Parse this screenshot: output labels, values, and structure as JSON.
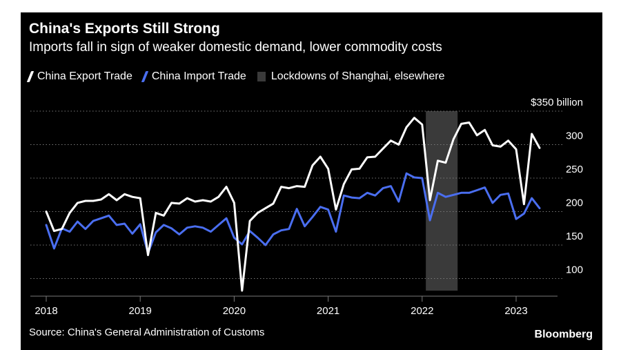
{
  "colors": {
    "background": "#000000",
    "export_line": "#ffffff",
    "import_line": "#4a6ef0",
    "lockdown_band": "#3a3a3a",
    "grid": "#7a7a7a",
    "text": "#ffffff"
  },
  "footer": {
    "source": "Source: China's General Administration of Customs",
    "brand": "Bloomberg"
  },
  "chart_data": {
    "type": "line",
    "title": "China's Exports Still Strong",
    "subtitle": "Imports fall in sign of weaker domestic demand, lower commodity costs",
    "ylabel": "",
    "xlabel": "",
    "y_unit_label": "$350 billion",
    "ylim": [
      80,
      350
    ],
    "y_ticks": [
      100,
      150,
      200,
      250,
      300,
      350
    ],
    "y_tick_labels": [
      "100",
      "150",
      "200",
      "250",
      "300",
      "$350 billion"
    ],
    "x_ticks": [
      "2018",
      "2019",
      "2020",
      "2021",
      "2022",
      "2023"
    ],
    "xlim": [
      "2017-12",
      "2023-05"
    ],
    "grid": true,
    "legend_position": "top-left",
    "lockdown_label": "Lockdowns of Shanghai, elsewhere",
    "shaded_periods": [
      {
        "label": "Lockdowns of Shanghai, elsewhere",
        "start": "2022-02",
        "end": "2022-05"
      }
    ],
    "dates": [
      "2018-01",
      "2018-02",
      "2018-03",
      "2018-04",
      "2018-05",
      "2018-06",
      "2018-07",
      "2018-08",
      "2018-09",
      "2018-10",
      "2018-11",
      "2018-12",
      "2019-01",
      "2019-02",
      "2019-03",
      "2019-04",
      "2019-05",
      "2019-06",
      "2019-07",
      "2019-08",
      "2019-09",
      "2019-10",
      "2019-11",
      "2019-12",
      "2020-01",
      "2020-02",
      "2020-03",
      "2020-04",
      "2020-05",
      "2020-06",
      "2020-07",
      "2020-08",
      "2020-09",
      "2020-10",
      "2020-11",
      "2020-12",
      "2021-01",
      "2021-02",
      "2021-03",
      "2021-04",
      "2021-05",
      "2021-06",
      "2021-07",
      "2021-08",
      "2021-09",
      "2021-10",
      "2021-11",
      "2021-12",
      "2022-01",
      "2022-02",
      "2022-03",
      "2022-04",
      "2022-05",
      "2022-06",
      "2022-07",
      "2022-08",
      "2022-09",
      "2022-10",
      "2022-11",
      "2022-12",
      "2023-01",
      "2023-02",
      "2023-03",
      "2023-04"
    ],
    "series": [
      {
        "name": "China Export Trade",
        "color": "#ffffff",
        "values": [
          200,
          171,
          174,
          198,
          213,
          216,
          216,
          218,
          226,
          217,
          226,
          222,
          220,
          135,
          198,
          194,
          213,
          212,
          220,
          215,
          217,
          215,
          222,
          237,
          213,
          82,
          186,
          198,
          205,
          212,
          237,
          235,
          238,
          237,
          269,
          282,
          264,
          203,
          241,
          263,
          264,
          281,
          282,
          294,
          306,
          300,
          326,
          340,
          330,
          217,
          276,
          273,
          308,
          331,
          333,
          314,
          322,
          299,
          297,
          306,
          293,
          211,
          316,
          295
        ]
      },
      {
        "name": "China Import Trade",
        "color": "#4a6ef0",
        "values": [
          180,
          145,
          175,
          170,
          185,
          174,
          186,
          190,
          194,
          180,
          182,
          167,
          181,
          138,
          169,
          180,
          175,
          166,
          176,
          178,
          176,
          170,
          180,
          190,
          161,
          151,
          171,
          161,
          150,
          166,
          172,
          174,
          204,
          178,
          192,
          207,
          203,
          170,
          224,
          221,
          220,
          228,
          224,
          235,
          238,
          215,
          257,
          251,
          250,
          187,
          228,
          222,
          225,
          228,
          228,
          232,
          236,
          213,
          225,
          227,
          189,
          197,
          220,
          205
        ]
      }
    ]
  }
}
